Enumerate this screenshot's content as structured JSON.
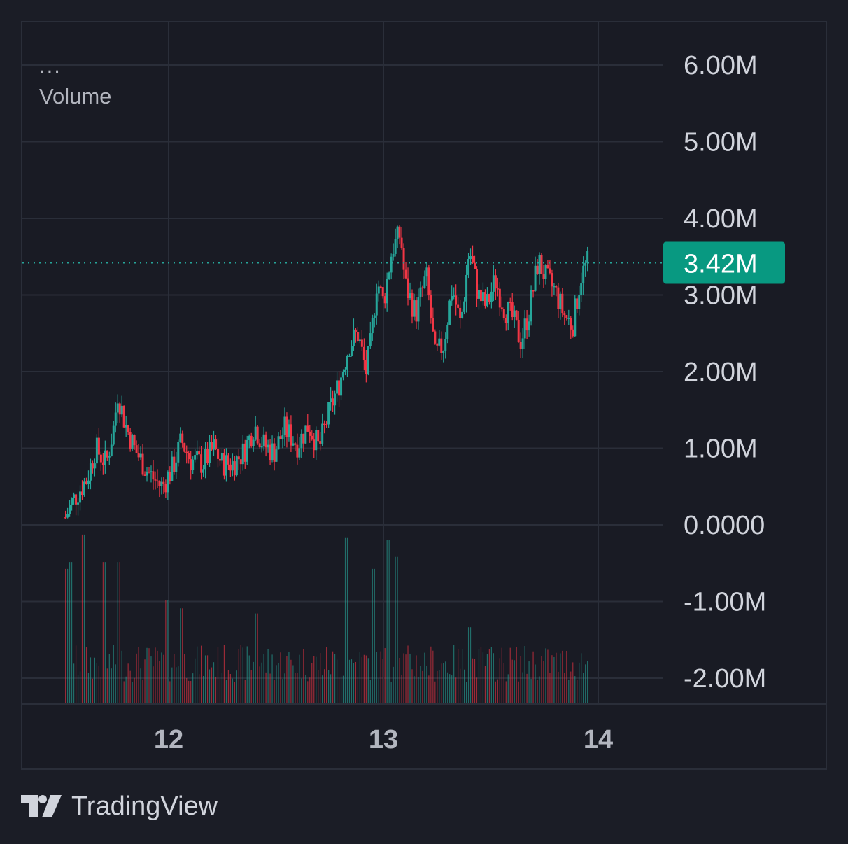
{
  "legend": {
    "menu_dots": "...",
    "series_label": "Volume"
  },
  "brand": {
    "name": "TradingView"
  },
  "colors": {
    "up": "#26a69a",
    "down": "#f23645",
    "grid": "#2a2e39",
    "axis_text": "#d1d4dc",
    "background": "#191b24"
  },
  "chart_data": {
    "type": "candlestick",
    "subtitle": "Volume",
    "x_ticks": [
      "12",
      "13",
      "14"
    ],
    "y_ticks": [
      "6.00M",
      "5.00M",
      "4.00M",
      "3.00M",
      "2.00M",
      "1.00M",
      "0.0000",
      "-1.00M",
      "-2.00M"
    ],
    "ylim": [
      -2.3,
      6.2
    ],
    "y_unit": "M",
    "last_value": 3.42,
    "last_value_label": "3.42M",
    "x_range_days": [
      11.4,
      13.95
    ],
    "grid": true,
    "close_keypoints": [
      [
        11.52,
        0.1
      ],
      [
        11.55,
        0.3
      ],
      [
        11.62,
        0.6
      ],
      [
        11.66,
        1.0
      ],
      [
        11.71,
        0.8
      ],
      [
        11.75,
        1.35
      ],
      [
        11.76,
        1.75
      ],
      [
        11.8,
        1.3
      ],
      [
        11.84,
        1.0
      ],
      [
        11.89,
        0.75
      ],
      [
        11.93,
        0.6
      ],
      [
        11.97,
        0.5
      ],
      [
        12.02,
        0.75
      ],
      [
        12.06,
        1.1
      ],
      [
        12.1,
        0.85
      ],
      [
        12.16,
        0.8
      ],
      [
        12.21,
        1.0
      ],
      [
        12.25,
        0.8
      ],
      [
        12.3,
        0.8
      ],
      [
        12.35,
        0.95
      ],
      [
        12.4,
        1.3
      ],
      [
        12.44,
        1.05
      ],
      [
        12.49,
        0.95
      ],
      [
        12.54,
        1.25
      ],
      [
        12.6,
        1.05
      ],
      [
        12.65,
        1.3
      ],
      [
        12.7,
        1.0
      ],
      [
        12.75,
        1.5
      ],
      [
        12.8,
        1.9
      ],
      [
        12.84,
        2.35
      ],
      [
        12.88,
        2.5
      ],
      [
        12.92,
        2.0
      ],
      [
        12.94,
        2.35
      ],
      [
        12.97,
        3.2
      ],
      [
        13.0,
        2.9
      ],
      [
        13.04,
        3.6
      ],
      [
        13.08,
        3.8
      ],
      [
        13.1,
        3.15
      ],
      [
        13.15,
        2.75
      ],
      [
        13.2,
        3.25
      ],
      [
        13.24,
        2.2
      ],
      [
        13.28,
        2.35
      ],
      [
        13.32,
        3.1
      ],
      [
        13.36,
        2.6
      ],
      [
        13.4,
        3.6
      ],
      [
        13.44,
        3.0
      ],
      [
        13.48,
        2.85
      ],
      [
        13.52,
        3.2
      ],
      [
        13.56,
        2.85
      ],
      [
        13.6,
        2.7
      ],
      [
        13.64,
        2.4
      ],
      [
        13.68,
        2.8
      ],
      [
        13.72,
        3.45
      ],
      [
        13.76,
        3.2
      ],
      [
        13.8,
        3.05
      ],
      [
        13.84,
        2.75
      ],
      [
        13.88,
        2.6
      ],
      [
        13.92,
        3.25
      ],
      [
        13.95,
        3.42
      ]
    ],
    "volume_spikes": [
      [
        11.52,
        0.78
      ],
      [
        11.54,
        0.82
      ],
      [
        11.6,
        0.98
      ],
      [
        11.7,
        0.82
      ],
      [
        11.77,
        0.82
      ],
      [
        11.99,
        0.6
      ],
      [
        12.06,
        0.55
      ],
      [
        12.41,
        0.52
      ],
      [
        12.83,
        0.96
      ],
      [
        12.95,
        0.78
      ],
      [
        13.02,
        0.95
      ],
      [
        13.06,
        0.85
      ],
      [
        13.4,
        0.44
      ]
    ]
  }
}
